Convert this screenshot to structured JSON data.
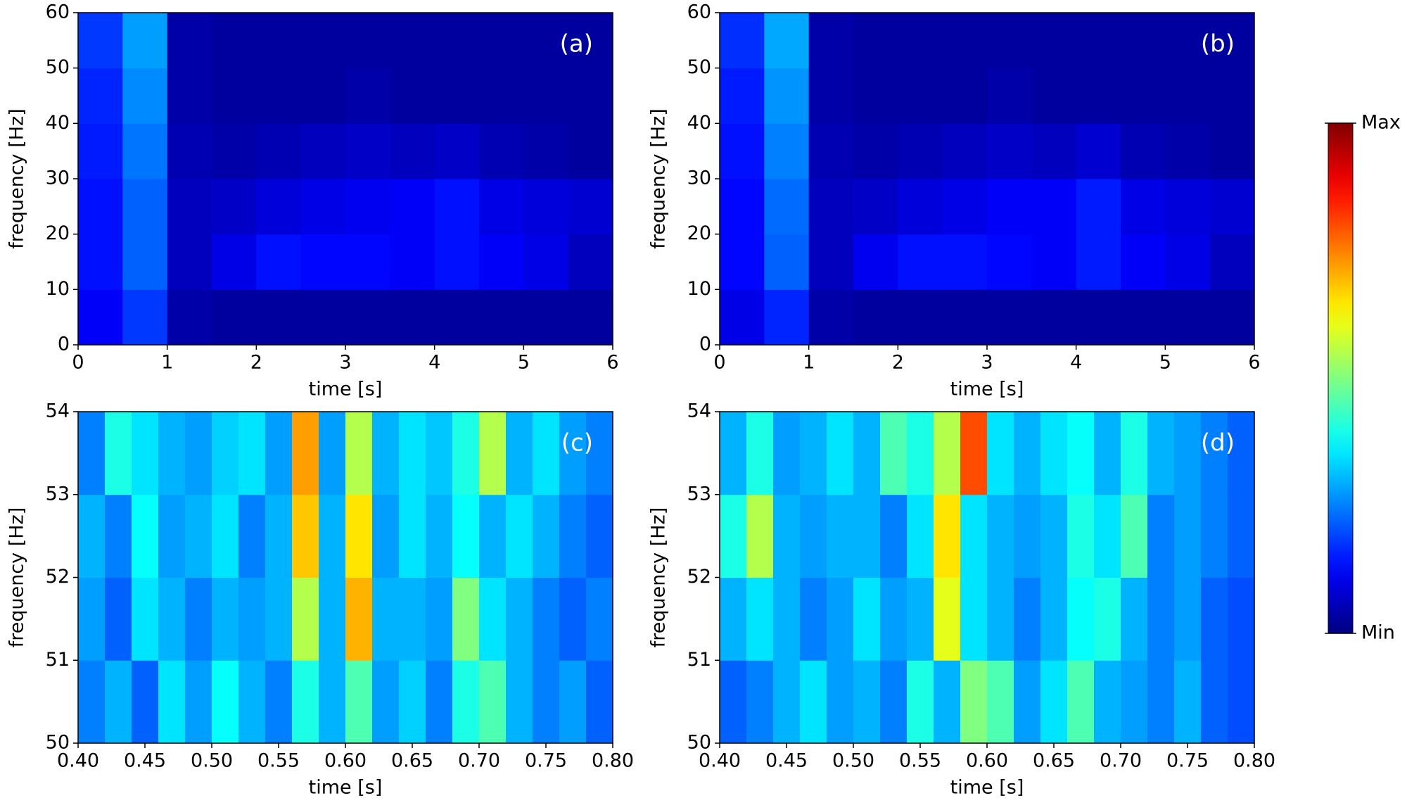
{
  "chart_data": [
    {
      "type": "heatmap",
      "annotation": "(a)",
      "xlabel": "time [s]",
      "ylabel": "frequency [Hz]",
      "x": [
        0.25,
        0.75,
        1.25,
        1.75,
        2.25,
        2.75,
        3.25,
        3.75,
        4.25,
        4.75,
        5.25,
        5.75
      ],
      "y": [
        5,
        15,
        25,
        35,
        45,
        55
      ],
      "z": [
        [
          0.12,
          0.18,
          0.04,
          0.03,
          0.03,
          0.03,
          0.03,
          0.03,
          0.03,
          0.03,
          0.03,
          0.03
        ],
        [
          0.14,
          0.22,
          0.06,
          0.1,
          0.14,
          0.13,
          0.13,
          0.12,
          0.14,
          0.12,
          0.1,
          0.06
        ],
        [
          0.14,
          0.22,
          0.06,
          0.07,
          0.09,
          0.1,
          0.11,
          0.12,
          0.14,
          0.1,
          0.09,
          0.08
        ],
        [
          0.15,
          0.24,
          0.05,
          0.04,
          0.05,
          0.06,
          0.07,
          0.06,
          0.07,
          0.05,
          0.04,
          0.03
        ],
        [
          0.16,
          0.26,
          0.04,
          0.03,
          0.03,
          0.03,
          0.04,
          0.03,
          0.03,
          0.03,
          0.03,
          0.03
        ],
        [
          0.18,
          0.28,
          0.04,
          0.03,
          0.03,
          0.03,
          0.03,
          0.03,
          0.03,
          0.03,
          0.03,
          0.03
        ]
      ],
      "xlim": [
        0,
        6
      ],
      "ylim": [
        0,
        60
      ],
      "xticks": [
        0,
        1,
        2,
        3,
        4,
        5,
        6
      ],
      "yticks": [
        0,
        10,
        20,
        30,
        40,
        50,
        60
      ]
    },
    {
      "type": "heatmap",
      "annotation": "(b)",
      "xlabel": "time [s]",
      "ylabel": "frequency [Hz]",
      "x": [
        0.25,
        0.75,
        1.25,
        1.75,
        2.25,
        2.75,
        3.25,
        3.75,
        4.25,
        4.75,
        5.25,
        5.75
      ],
      "y": [
        5,
        15,
        25,
        35,
        45,
        55
      ],
      "z": [
        [
          0.1,
          0.16,
          0.04,
          0.03,
          0.03,
          0.03,
          0.03,
          0.03,
          0.03,
          0.03,
          0.03,
          0.03
        ],
        [
          0.13,
          0.22,
          0.06,
          0.11,
          0.14,
          0.14,
          0.13,
          0.12,
          0.15,
          0.12,
          0.1,
          0.06
        ],
        [
          0.13,
          0.23,
          0.06,
          0.07,
          0.09,
          0.1,
          0.12,
          0.12,
          0.15,
          0.1,
          0.09,
          0.08
        ],
        [
          0.14,
          0.25,
          0.05,
          0.04,
          0.05,
          0.06,
          0.07,
          0.06,
          0.08,
          0.05,
          0.04,
          0.03
        ],
        [
          0.15,
          0.27,
          0.04,
          0.03,
          0.03,
          0.03,
          0.04,
          0.03,
          0.03,
          0.03,
          0.03,
          0.03
        ],
        [
          0.17,
          0.29,
          0.04,
          0.03,
          0.03,
          0.03,
          0.03,
          0.03,
          0.03,
          0.03,
          0.03,
          0.03
        ]
      ],
      "xlim": [
        0,
        6
      ],
      "ylim": [
        0,
        60
      ],
      "xticks": [
        0,
        1,
        2,
        3,
        4,
        5,
        6
      ],
      "yticks": [
        0,
        10,
        20,
        30,
        40,
        50,
        60
      ]
    },
    {
      "type": "heatmap",
      "annotation": "(c)",
      "xlabel": "time [s]",
      "ylabel": "frequency [Hz]",
      "x": [
        0.41,
        0.43,
        0.45,
        0.47,
        0.49,
        0.51,
        0.53,
        0.55,
        0.57,
        0.59,
        0.61,
        0.63,
        0.65,
        0.67,
        0.69,
        0.71,
        0.73,
        0.75,
        0.77,
        0.79
      ],
      "y": [
        50.5,
        51.5,
        52.5,
        53.5
      ],
      "z": [
        [
          0.25,
          0.3,
          0.22,
          0.35,
          0.28,
          0.38,
          0.3,
          0.25,
          0.4,
          0.3,
          0.45,
          0.28,
          0.33,
          0.25,
          0.4,
          0.45,
          0.3,
          0.25,
          0.28,
          0.22
        ],
        [
          0.28,
          0.22,
          0.35,
          0.3,
          0.25,
          0.3,
          0.28,
          0.3,
          0.55,
          0.3,
          0.7,
          0.3,
          0.3,
          0.28,
          0.5,
          0.35,
          0.3,
          0.25,
          0.22,
          0.25
        ],
        [
          0.3,
          0.25,
          0.38,
          0.28,
          0.3,
          0.35,
          0.25,
          0.3,
          0.68,
          0.3,
          0.65,
          0.28,
          0.35,
          0.3,
          0.38,
          0.3,
          0.35,
          0.3,
          0.25,
          0.22
        ],
        [
          0.25,
          0.4,
          0.35,
          0.3,
          0.28,
          0.33,
          0.35,
          0.28,
          0.72,
          0.28,
          0.55,
          0.3,
          0.35,
          0.32,
          0.4,
          0.55,
          0.3,
          0.35,
          0.28,
          0.25
        ]
      ],
      "xlim": [
        0.4,
        0.8
      ],
      "ylim": [
        50,
        54
      ],
      "xticks": [
        {
          "value": 0.4,
          "label": "0.40"
        },
        {
          "value": 0.45,
          "label": "0.45"
        },
        {
          "value": 0.5,
          "label": "0.50"
        },
        {
          "value": 0.55,
          "label": "0.55"
        },
        {
          "value": 0.6,
          "label": "0.60"
        },
        {
          "value": 0.65,
          "label": "0.65"
        },
        {
          "value": 0.7,
          "label": "0.70"
        },
        {
          "value": 0.75,
          "label": "0.75"
        },
        {
          "value": 0.8,
          "label": "0.80"
        }
      ],
      "yticks": [
        50,
        51,
        52,
        53,
        54
      ]
    },
    {
      "type": "heatmap",
      "annotation": "(d)",
      "xlabel": "time [s]",
      "ylabel": "frequency [Hz]",
      "x": [
        0.41,
        0.43,
        0.45,
        0.47,
        0.49,
        0.51,
        0.53,
        0.55,
        0.57,
        0.59,
        0.61,
        0.63,
        0.65,
        0.67,
        0.69,
        0.71,
        0.73,
        0.75,
        0.77,
        0.79
      ],
      "y": [
        50.5,
        51.5,
        52.5,
        53.5
      ],
      "z": [
        [
          0.22,
          0.25,
          0.3,
          0.35,
          0.28,
          0.3,
          0.25,
          0.4,
          0.3,
          0.5,
          0.45,
          0.28,
          0.35,
          0.45,
          0.3,
          0.28,
          0.25,
          0.3,
          0.22,
          0.2
        ],
        [
          0.3,
          0.35,
          0.3,
          0.25,
          0.28,
          0.35,
          0.28,
          0.3,
          0.6,
          0.35,
          0.3,
          0.25,
          0.3,
          0.38,
          0.4,
          0.3,
          0.25,
          0.28,
          0.22,
          0.2
        ],
        [
          0.4,
          0.55,
          0.3,
          0.28,
          0.3,
          0.3,
          0.25,
          0.35,
          0.65,
          0.35,
          0.3,
          0.28,
          0.3,
          0.4,
          0.35,
          0.45,
          0.25,
          0.28,
          0.25,
          0.22
        ],
        [
          0.3,
          0.4,
          0.28,
          0.3,
          0.35,
          0.3,
          0.45,
          0.4,
          0.55,
          0.8,
          0.35,
          0.3,
          0.35,
          0.38,
          0.3,
          0.4,
          0.3,
          0.28,
          0.25,
          0.22
        ]
      ],
      "xlim": [
        0.4,
        0.8
      ],
      "ylim": [
        50,
        54
      ],
      "xticks": [
        {
          "value": 0.4,
          "label": "0.40"
        },
        {
          "value": 0.45,
          "label": "0.45"
        },
        {
          "value": 0.5,
          "label": "0.50"
        },
        {
          "value": 0.55,
          "label": "0.55"
        },
        {
          "value": 0.6,
          "label": "0.60"
        },
        {
          "value": 0.65,
          "label": "0.65"
        },
        {
          "value": 0.7,
          "label": "0.70"
        },
        {
          "value": 0.75,
          "label": "0.75"
        },
        {
          "value": 0.8,
          "label": "0.80"
        }
      ],
      "yticks": [
        50,
        51,
        52,
        53,
        54
      ]
    }
  ],
  "colorbar": {
    "colormap": "jet",
    "zlim": [
      0,
      1
    ],
    "zticks": [
      {
        "value": 0,
        "label": "Min"
      },
      {
        "value": 1,
        "label": "Max"
      }
    ]
  }
}
